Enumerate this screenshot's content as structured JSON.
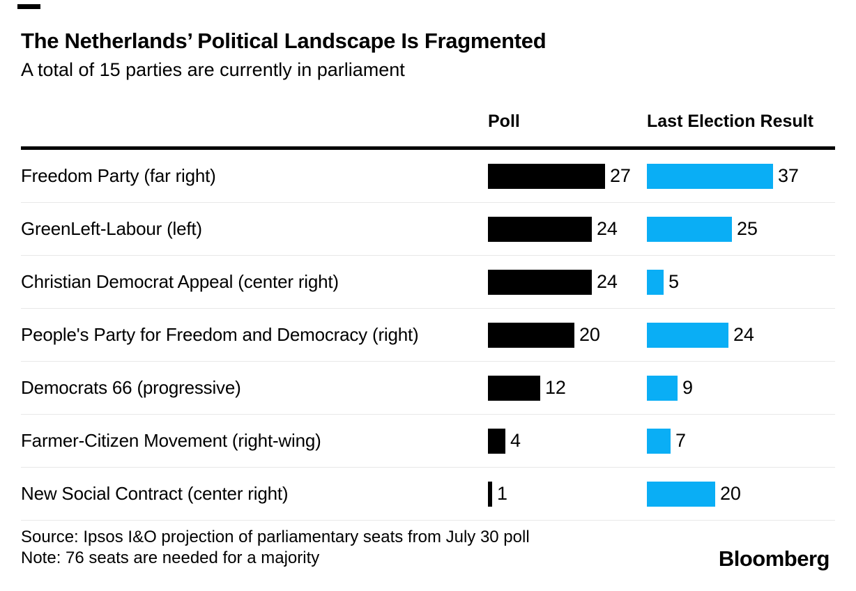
{
  "brand": {
    "logo": "Bloomberg",
    "poll_color": "#000000",
    "election_color": "#0aaef5",
    "rule_color": "#000000",
    "separator_color": "#e8e8e8"
  },
  "header": {
    "title": "The Netherlands’ Political Landscape Is Fragmented",
    "subtitle": "A total of 15 parties are currently in parliament"
  },
  "table": {
    "columns": [
      {
        "label": "Poll"
      },
      {
        "label": "Last Election Result"
      }
    ],
    "rows": [
      {
        "party": "Freedom Party (far right)",
        "poll": 27,
        "last": 37
      },
      {
        "party": "GreenLeft-Labour (left)",
        "poll": 24,
        "last": 25
      },
      {
        "party": "Christian Democrat Appeal (center right)",
        "poll": 24,
        "last": 5
      },
      {
        "party": "People's Party for Freedom and Democracy (right)",
        "poll": 20,
        "last": 24
      },
      {
        "party": "Democrats 66 (progressive)",
        "poll": 12,
        "last": 9
      },
      {
        "party": "Farmer-Citizen Movement (right-wing)",
        "poll": 4,
        "last": 7
      },
      {
        "party": "New Social Contract (center right)",
        "poll": 1,
        "last": 20
      }
    ]
  },
  "footer": {
    "source": "Source: Ipsos I&O projection of parliamentary seats from July 30 poll",
    "note": "Note: 76 seats are needed for a majority"
  },
  "chart_data": {
    "type": "bar",
    "orientation": "horizontal",
    "title": "The Netherlands’ Political Landscape Is Fragmented",
    "subtitle": "A total of 15 parties are currently in parliament",
    "unit": "parliamentary seats",
    "categories": [
      "Freedom Party (far right)",
      "GreenLeft-Labour (left)",
      "Christian Democrat Appeal (center right)",
      "People's Party for Freedom and Democracy (right)",
      "Democrats 66 (progressive)",
      "Farmer-Citizen Movement (right-wing)",
      "New Social Contract (center right)"
    ],
    "series": [
      {
        "name": "Poll",
        "color": "#000000",
        "values": [
          27,
          24,
          24,
          20,
          12,
          4,
          1
        ]
      },
      {
        "name": "Last Election Result",
        "color": "#0aaef5",
        "values": [
          37,
          25,
          5,
          24,
          9,
          7,
          20
        ]
      }
    ],
    "value_labels": true,
    "grid": false,
    "legend_position": "column-headers",
    "source": "Source: Ipsos I&O projection of parliamentary seats from July 30 poll",
    "note": "Note: 76 seats are needed for a majority"
  }
}
